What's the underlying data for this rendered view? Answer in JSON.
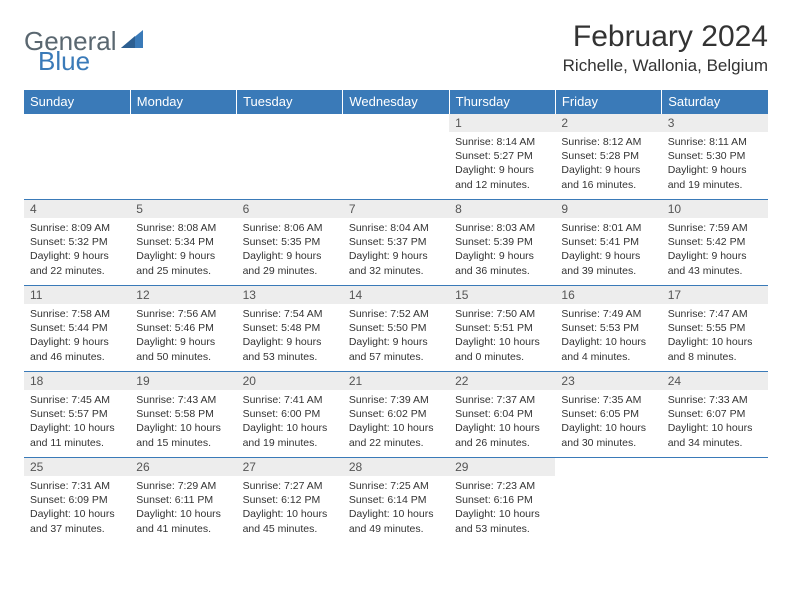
{
  "logo": {
    "text_gray": "General",
    "text_blue": "Blue"
  },
  "title": "February 2024",
  "subtitle": "Richelle, Wallonia, Belgium",
  "colors": {
    "header_bg": "#3a7ab8",
    "header_text": "#ffffff",
    "daynum_bg": "#ededed",
    "row_border": "#3a7ab8",
    "body_text": "#333333",
    "logo_gray": "#5a6770",
    "logo_blue": "#3a7ab8"
  },
  "day_headers": [
    "Sunday",
    "Monday",
    "Tuesday",
    "Wednesday",
    "Thursday",
    "Friday",
    "Saturday"
  ],
  "weeks": [
    [
      {
        "n": "",
        "sr": "",
        "ss": "",
        "dl": ""
      },
      {
        "n": "",
        "sr": "",
        "ss": "",
        "dl": ""
      },
      {
        "n": "",
        "sr": "",
        "ss": "",
        "dl": ""
      },
      {
        "n": "",
        "sr": "",
        "ss": "",
        "dl": ""
      },
      {
        "n": "1",
        "sr": "Sunrise: 8:14 AM",
        "ss": "Sunset: 5:27 PM",
        "dl": "Daylight: 9 hours and 12 minutes."
      },
      {
        "n": "2",
        "sr": "Sunrise: 8:12 AM",
        "ss": "Sunset: 5:28 PM",
        "dl": "Daylight: 9 hours and 16 minutes."
      },
      {
        "n": "3",
        "sr": "Sunrise: 8:11 AM",
        "ss": "Sunset: 5:30 PM",
        "dl": "Daylight: 9 hours and 19 minutes."
      }
    ],
    [
      {
        "n": "4",
        "sr": "Sunrise: 8:09 AM",
        "ss": "Sunset: 5:32 PM",
        "dl": "Daylight: 9 hours and 22 minutes."
      },
      {
        "n": "5",
        "sr": "Sunrise: 8:08 AM",
        "ss": "Sunset: 5:34 PM",
        "dl": "Daylight: 9 hours and 25 minutes."
      },
      {
        "n": "6",
        "sr": "Sunrise: 8:06 AM",
        "ss": "Sunset: 5:35 PM",
        "dl": "Daylight: 9 hours and 29 minutes."
      },
      {
        "n": "7",
        "sr": "Sunrise: 8:04 AM",
        "ss": "Sunset: 5:37 PM",
        "dl": "Daylight: 9 hours and 32 minutes."
      },
      {
        "n": "8",
        "sr": "Sunrise: 8:03 AM",
        "ss": "Sunset: 5:39 PM",
        "dl": "Daylight: 9 hours and 36 minutes."
      },
      {
        "n": "9",
        "sr": "Sunrise: 8:01 AM",
        "ss": "Sunset: 5:41 PM",
        "dl": "Daylight: 9 hours and 39 minutes."
      },
      {
        "n": "10",
        "sr": "Sunrise: 7:59 AM",
        "ss": "Sunset: 5:42 PM",
        "dl": "Daylight: 9 hours and 43 minutes."
      }
    ],
    [
      {
        "n": "11",
        "sr": "Sunrise: 7:58 AM",
        "ss": "Sunset: 5:44 PM",
        "dl": "Daylight: 9 hours and 46 minutes."
      },
      {
        "n": "12",
        "sr": "Sunrise: 7:56 AM",
        "ss": "Sunset: 5:46 PM",
        "dl": "Daylight: 9 hours and 50 minutes."
      },
      {
        "n": "13",
        "sr": "Sunrise: 7:54 AM",
        "ss": "Sunset: 5:48 PM",
        "dl": "Daylight: 9 hours and 53 minutes."
      },
      {
        "n": "14",
        "sr": "Sunrise: 7:52 AM",
        "ss": "Sunset: 5:50 PM",
        "dl": "Daylight: 9 hours and 57 minutes."
      },
      {
        "n": "15",
        "sr": "Sunrise: 7:50 AM",
        "ss": "Sunset: 5:51 PM",
        "dl": "Daylight: 10 hours and 0 minutes."
      },
      {
        "n": "16",
        "sr": "Sunrise: 7:49 AM",
        "ss": "Sunset: 5:53 PM",
        "dl": "Daylight: 10 hours and 4 minutes."
      },
      {
        "n": "17",
        "sr": "Sunrise: 7:47 AM",
        "ss": "Sunset: 5:55 PM",
        "dl": "Daylight: 10 hours and 8 minutes."
      }
    ],
    [
      {
        "n": "18",
        "sr": "Sunrise: 7:45 AM",
        "ss": "Sunset: 5:57 PM",
        "dl": "Daylight: 10 hours and 11 minutes."
      },
      {
        "n": "19",
        "sr": "Sunrise: 7:43 AM",
        "ss": "Sunset: 5:58 PM",
        "dl": "Daylight: 10 hours and 15 minutes."
      },
      {
        "n": "20",
        "sr": "Sunrise: 7:41 AM",
        "ss": "Sunset: 6:00 PM",
        "dl": "Daylight: 10 hours and 19 minutes."
      },
      {
        "n": "21",
        "sr": "Sunrise: 7:39 AM",
        "ss": "Sunset: 6:02 PM",
        "dl": "Daylight: 10 hours and 22 minutes."
      },
      {
        "n": "22",
        "sr": "Sunrise: 7:37 AM",
        "ss": "Sunset: 6:04 PM",
        "dl": "Daylight: 10 hours and 26 minutes."
      },
      {
        "n": "23",
        "sr": "Sunrise: 7:35 AM",
        "ss": "Sunset: 6:05 PM",
        "dl": "Daylight: 10 hours and 30 minutes."
      },
      {
        "n": "24",
        "sr": "Sunrise: 7:33 AM",
        "ss": "Sunset: 6:07 PM",
        "dl": "Daylight: 10 hours and 34 minutes."
      }
    ],
    [
      {
        "n": "25",
        "sr": "Sunrise: 7:31 AM",
        "ss": "Sunset: 6:09 PM",
        "dl": "Daylight: 10 hours and 37 minutes."
      },
      {
        "n": "26",
        "sr": "Sunrise: 7:29 AM",
        "ss": "Sunset: 6:11 PM",
        "dl": "Daylight: 10 hours and 41 minutes."
      },
      {
        "n": "27",
        "sr": "Sunrise: 7:27 AM",
        "ss": "Sunset: 6:12 PM",
        "dl": "Daylight: 10 hours and 45 minutes."
      },
      {
        "n": "28",
        "sr": "Sunrise: 7:25 AM",
        "ss": "Sunset: 6:14 PM",
        "dl": "Daylight: 10 hours and 49 minutes."
      },
      {
        "n": "29",
        "sr": "Sunrise: 7:23 AM",
        "ss": "Sunset: 6:16 PM",
        "dl": "Daylight: 10 hours and 53 minutes."
      },
      {
        "n": "",
        "sr": "",
        "ss": "",
        "dl": ""
      },
      {
        "n": "",
        "sr": "",
        "ss": "",
        "dl": ""
      }
    ]
  ]
}
